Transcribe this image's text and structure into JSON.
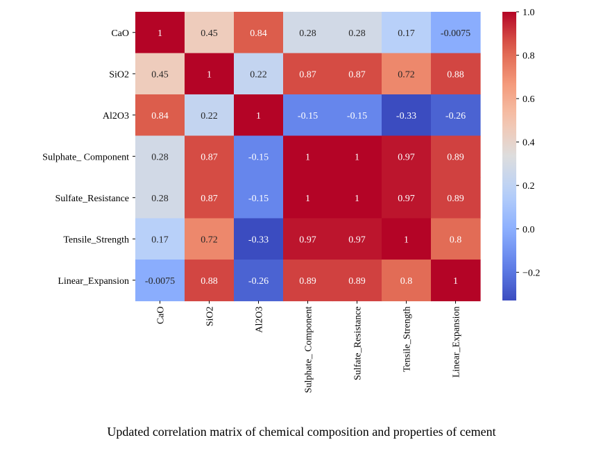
{
  "caption": "Updated correlation matrix of chemical composition and properties of cement",
  "chart_data": {
    "type": "heatmap",
    "title": "",
    "xlabel": "",
    "ylabel": "",
    "colormap": "coolwarm",
    "vmin": -0.33,
    "vmax": 1.0,
    "rows": [
      "CaO",
      "SiO2",
      "Al2O3",
      "Sulphate_ Component",
      "Sulfate_Resistance",
      "Tensile_Strength",
      "Linear_Expansion"
    ],
    "columns": [
      "CaO",
      "SiO2",
      "Al2O3",
      "Sulphate_ Component",
      "Sulfate_Resistance",
      "Tensile_Strength",
      "Linear_Expansion"
    ],
    "values": [
      [
        1,
        0.45,
        0.84,
        0.28,
        0.28,
        0.17,
        -0.0075
      ],
      [
        0.45,
        1,
        0.22,
        0.87,
        0.87,
        0.72,
        0.88
      ],
      [
        0.84,
        0.22,
        1,
        -0.15,
        -0.15,
        -0.33,
        -0.26
      ],
      [
        0.28,
        0.87,
        -0.15,
        1,
        1,
        0.97,
        0.89
      ],
      [
        0.28,
        0.87,
        -0.15,
        1,
        1,
        0.97,
        0.89
      ],
      [
        0.17,
        0.72,
        -0.33,
        0.97,
        0.97,
        1,
        0.8
      ],
      [
        -0.0075,
        0.88,
        -0.26,
        0.89,
        0.89,
        0.8,
        1
      ]
    ],
    "colorbar_ticks": [
      1.0,
      0.8,
      0.6,
      0.4,
      0.2,
      0.0,
      -0.2
    ],
    "colorbar_tick_labels": [
      "1.0",
      "0.8",
      "0.6",
      "0.4",
      "0.2",
      "0.0",
      "−0.2"
    ]
  }
}
